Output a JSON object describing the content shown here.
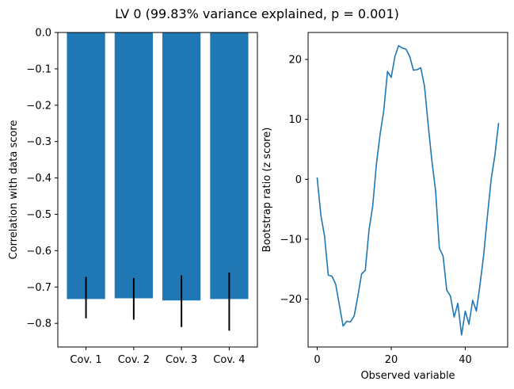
{
  "figure": {
    "title": "LV 0 (99.83% variance explained, p = 0.001)"
  },
  "colors": {
    "bar": "#1f77b4",
    "line": "#1f77b4",
    "errorbar": "#000000",
    "axes": "#000000"
  },
  "chart_data": [
    {
      "type": "bar",
      "title": "",
      "xlabel": "",
      "ylabel": "Correlation with data score",
      "categories": [
        "Cov. 1",
        "Cov. 2",
        "Cov. 3",
        "Cov. 4"
      ],
      "values": [
        -0.733,
        -0.731,
        -0.737,
        -0.733
      ],
      "error_bars": [
        {
          "low": -0.786,
          "high": -0.672
        },
        {
          "low": -0.79,
          "high": -0.675
        },
        {
          "low": -0.81,
          "high": -0.668
        },
        {
          "low": -0.82,
          "high": -0.66
        }
      ],
      "ylim": [
        -0.865,
        0.0
      ],
      "yticks": [
        0.0,
        -0.1,
        -0.2,
        -0.3,
        -0.4,
        -0.5,
        -0.6,
        -0.7,
        -0.8
      ],
      "ytick_labels": [
        "0.0",
        "−0.1",
        "−0.2",
        "−0.3",
        "−0.4",
        "−0.5",
        "−0.6",
        "−0.7",
        "−0.8"
      ],
      "grid": false
    },
    {
      "type": "line",
      "title": "",
      "xlabel": "Observed variable",
      "ylabel": "Bootstrap ratio (z score)",
      "x": [
        0,
        1,
        2,
        3,
        4,
        5,
        6,
        7,
        8,
        9,
        10,
        11,
        12,
        13,
        14,
        15,
        16,
        17,
        18,
        19,
        20,
        21,
        22,
        23,
        24,
        25,
        26,
        27,
        28,
        29,
        30,
        31,
        32,
        33,
        34,
        35,
        36,
        37,
        38,
        39,
        40,
        41,
        42,
        43,
        44,
        45,
        46,
        47,
        48,
        49
      ],
      "y": [
        0.3,
        -6.0,
        -9.5,
        -16.0,
        -16.2,
        -17.5,
        -21.0,
        -24.5,
        -23.7,
        -23.8,
        -22.8,
        -19.5,
        -15.8,
        -15.2,
        -8.5,
        -4.5,
        2.5,
        7.5,
        11.5,
        18.0,
        17.0,
        20.5,
        22.3,
        21.9,
        21.7,
        20.5,
        18.2,
        18.3,
        18.6,
        15.5,
        9.0,
        3.0,
        -2.0,
        -11.5,
        -12.8,
        -18.5,
        -19.5,
        -23.0,
        -20.7,
        -26.0,
        -22.0,
        -24.2,
        -20.2,
        -22.0,
        -17.5,
        -12.5,
        -6.0,
        0.0,
        4.0,
        9.4
      ],
      "xlim": [
        -2.45,
        51.45
      ],
      "ylim": [
        -28.0,
        24.5
      ],
      "xticks": [
        0,
        20,
        40
      ],
      "xtick_labels": [
        "0",
        "20",
        "40"
      ],
      "yticks": [
        20,
        10,
        0,
        -10,
        -20
      ],
      "ytick_labels": [
        "20",
        "10",
        "0",
        "−10",
        "−20"
      ],
      "grid": false
    }
  ]
}
